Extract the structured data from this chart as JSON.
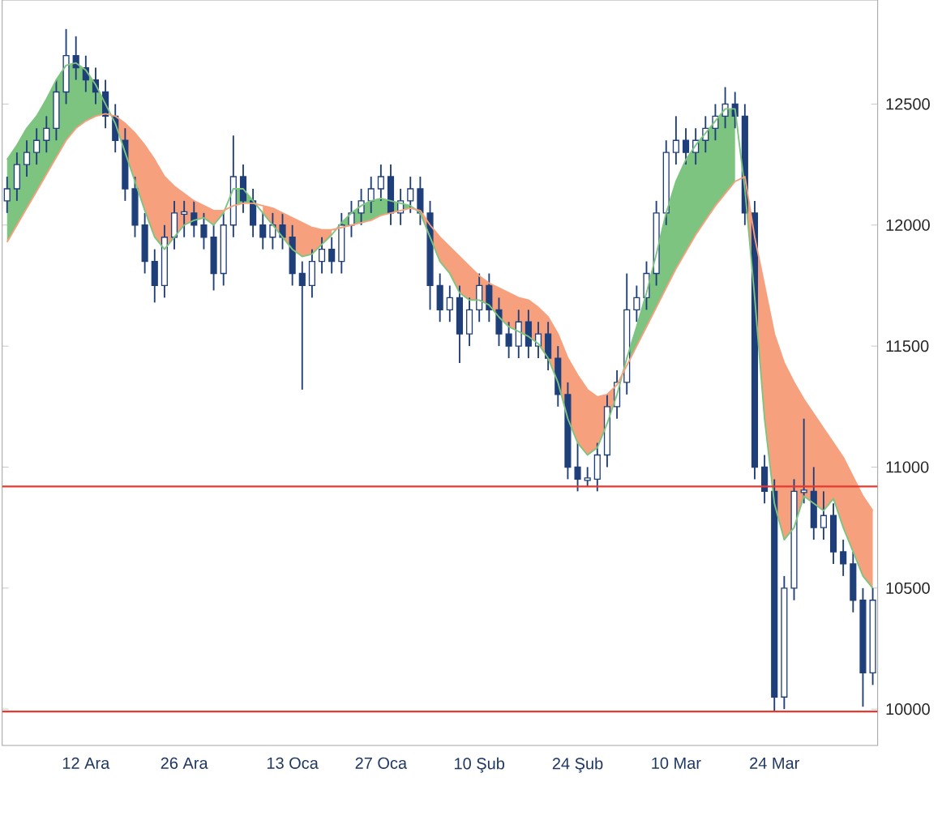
{
  "chart_data": {
    "type": "candlestick",
    "color": "#1f3f7a",
    "categories": [
      null,
      null,
      null,
      null,
      null,
      null,
      null,
      null,
      "12 Ara",
      null,
      null,
      null,
      null,
      null,
      null,
      null,
      null,
      null,
      "26 Ara",
      null,
      null,
      null,
      null,
      null,
      null,
      null,
      null,
      null,
      null,
      "13 Oca",
      null,
      null,
      null,
      null,
      null,
      null,
      null,
      null,
      "27 Oca",
      null,
      null,
      null,
      null,
      null,
      null,
      null,
      null,
      null,
      "10 Şub",
      null,
      null,
      null,
      null,
      null,
      null,
      null,
      null,
      null,
      "24 Şub",
      null,
      null,
      null,
      null,
      null,
      null,
      null,
      null,
      null,
      "10 Mar",
      null,
      null,
      null,
      null,
      null,
      null,
      null,
      null,
      null,
      "24 Mar",
      null,
      null,
      null,
      null,
      null,
      null,
      null,
      null,
      null,
      null
    ],
    "ohlc": [
      [
        12100,
        12200,
        12050,
        12150
      ],
      [
        12150,
        12300,
        12100,
        12250
      ],
      [
        12250,
        12350,
        12200,
        12300
      ],
      [
        12300,
        12400,
        12250,
        12350
      ],
      [
        12350,
        12450,
        12300,
        12400
      ],
      [
        12400,
        12600,
        12350,
        12550
      ],
      [
        12550,
        12810,
        12500,
        12700
      ],
      [
        12700,
        12780,
        12600,
        12650
      ],
      [
        12650,
        12700,
        12550,
        12600
      ],
      [
        12600,
        12650,
        12500,
        12550
      ],
      [
        12550,
        12600,
        12400,
        12450
      ],
      [
        12450,
        12500,
        12300,
        12350
      ],
      [
        12350,
        12400,
        12100,
        12150
      ],
      [
        12150,
        12200,
        11950,
        12000
      ],
      [
        12000,
        12050,
        11800,
        11850
      ],
      [
        11850,
        11900,
        11680,
        11750
      ],
      [
        11750,
        12000,
        11700,
        11950
      ],
      [
        11950,
        12100,
        11900,
        12050
      ],
      [
        12050,
        12100,
        11950,
        12050
      ],
      [
        12050,
        12100,
        11950,
        12000
      ],
      [
        12000,
        12050,
        11900,
        11950
      ],
      [
        11950,
        12000,
        11730,
        11800
      ],
      [
        11800,
        12050,
        11750,
        12000
      ],
      [
        12000,
        12370,
        11950,
        12200
      ],
      [
        12200,
        12250,
        12050,
        12100
      ],
      [
        12100,
        12150,
        11950,
        12000
      ],
      [
        12000,
        12050,
        11900,
        11950
      ],
      [
        11950,
        12050,
        11900,
        12000
      ],
      [
        12000,
        12050,
        11900,
        11950
      ],
      [
        11950,
        12000,
        11750,
        11800
      ],
      [
        11800,
        11850,
        11320,
        11750
      ],
      [
        11750,
        11900,
        11700,
        11850
      ],
      [
        11850,
        11950,
        11800,
        11900
      ],
      [
        11900,
        11950,
        11800,
        11850
      ],
      [
        11850,
        12050,
        11800,
        12000
      ],
      [
        12000,
        12100,
        11950,
        12050
      ],
      [
        12050,
        12150,
        12000,
        12100
      ],
      [
        12100,
        12200,
        12050,
        12150
      ],
      [
        12150,
        12250,
        12100,
        12200
      ],
      [
        12200,
        12250,
        12000,
        12050
      ],
      [
        12050,
        12150,
        12000,
        12100
      ],
      [
        12100,
        12200,
        12050,
        12150
      ],
      [
        12150,
        12200,
        12000,
        12050
      ],
      [
        12050,
        12100,
        11650,
        11750
      ],
      [
        11750,
        11800,
        11600,
        11650
      ],
      [
        11650,
        11750,
        11600,
        11700
      ],
      [
        11700,
        11750,
        11430,
        11550
      ],
      [
        11550,
        11700,
        11500,
        11650
      ],
      [
        11650,
        11800,
        11600,
        11750
      ],
      [
        11750,
        11800,
        11600,
        11650
      ],
      [
        11650,
        11700,
        11500,
        11550
      ],
      [
        11550,
        11600,
        11450,
        11500
      ],
      [
        11500,
        11650,
        11450,
        11600
      ],
      [
        11600,
        11650,
        11450,
        11500
      ],
      [
        11500,
        11600,
        11450,
        11550
      ],
      [
        11550,
        11600,
        11400,
        11450
      ],
      [
        11450,
        11500,
        11250,
        11300
      ],
      [
        11300,
        11350,
        10950,
        11000
      ],
      [
        11000,
        11100,
        10900,
        10950
      ],
      [
        10950,
        11000,
        10920,
        10950
      ],
      [
        10950,
        11100,
        10900,
        11050
      ],
      [
        11050,
        11300,
        11000,
        11250
      ],
      [
        11250,
        11400,
        11200,
        11350
      ],
      [
        11350,
        11800,
        11300,
        11650
      ],
      [
        11650,
        11750,
        11600,
        11700
      ],
      [
        11700,
        11850,
        11650,
        11800
      ],
      [
        11800,
        12100,
        11750,
        12050
      ],
      [
        12050,
        12350,
        12000,
        12300
      ],
      [
        12300,
        12450,
        12250,
        12350
      ],
      [
        12350,
        12400,
        12250,
        12300
      ],
      [
        12300,
        12400,
        12250,
        12350
      ],
      [
        12350,
        12450,
        12300,
        12400
      ],
      [
        12400,
        12500,
        12350,
        12450
      ],
      [
        12450,
        12570,
        12400,
        12500
      ],
      [
        12500,
        12550,
        12400,
        12450
      ],
      [
        12450,
        12500,
        12000,
        12050
      ],
      [
        12050,
        12100,
        10950,
        11000
      ],
      [
        11000,
        11050,
        10850,
        10900
      ],
      [
        10900,
        10950,
        9990,
        10050
      ],
      [
        10050,
        10550,
        10000,
        10500
      ],
      [
        10500,
        10950,
        10450,
        10900
      ],
      [
        10900,
        11200,
        10850,
        10900
      ],
      [
        10900,
        11000,
        10700,
        10750
      ],
      [
        10750,
        10900,
        10700,
        10800
      ],
      [
        10800,
        10850,
        10600,
        10650
      ],
      [
        10650,
        10700,
        10550,
        10600
      ],
      [
        10600,
        10650,
        10400,
        10450
      ],
      [
        10450,
        10500,
        10010,
        10150
      ],
      [
        10150,
        10500,
        10100,
        10450
      ]
    ],
    "series": [
      {
        "type": "line",
        "color": "#7cc47f",
        "values": [
          12270,
          12330,
          12400,
          12450,
          12520,
          12600,
          12660,
          12670,
          12640,
          12580,
          12500,
          12420,
          12300,
          12180,
          12060,
          11950,
          11900,
          11950,
          12000,
          12020,
          12030,
          12000,
          12050,
          12150,
          12150,
          12100,
          12050,
          12000,
          11950,
          11900,
          11870,
          11880,
          11920,
          11960,
          12010,
          12050,
          12080,
          12100,
          12110,
          12100,
          12090,
          12080,
          12050,
          11950,
          11850,
          11800,
          11720,
          11690,
          11690,
          11670,
          11620,
          11580,
          11560,
          11540,
          11510,
          11450,
          11350,
          11200,
          11100,
          11050,
          11080,
          11180,
          11300,
          11450,
          11580,
          11720,
          11880,
          12050,
          12180,
          12270,
          12330,
          12380,
          12430,
          12480,
          12480,
          12150,
          11700,
          11200,
          10850,
          10700,
          10750,
          10880,
          10850,
          10820,
          10870,
          10750,
          10650,
          10550,
          10500
        ],
        "lower": [
          11930,
          12000,
          12070,
          12140,
          12210,
          12280,
          12350,
          12400,
          12430,
          12450,
          12460,
          null,
          null,
          null,
          null,
          null,
          null,
          null,
          null,
          null,
          null,
          null,
          null,
          12080,
          12090,
          12090,
          null,
          null,
          null,
          null,
          null,
          null,
          null,
          null,
          11990,
          12000,
          12010,
          12020,
          12040,
          12050,
          12060,
          12070,
          null,
          null,
          null,
          null,
          null,
          null,
          null,
          null,
          null,
          null,
          null,
          null,
          null,
          null,
          null,
          null,
          null,
          null,
          null,
          null,
          null,
          11420,
          11500,
          11580,
          11660,
          11740,
          11820,
          11890,
          11960,
          12020,
          12080,
          12130,
          12180,
          null,
          null,
          null,
          null,
          null,
          null,
          null,
          null,
          null,
          null,
          null,
          null,
          null,
          null
        ],
        "upper": [
          12270,
          12330,
          12400,
          12450,
          12520,
          12600,
          12660,
          12670,
          12640,
          12580,
          12500,
          null,
          null,
          null,
          null,
          null,
          null,
          null,
          null,
          null,
          null,
          null,
          null,
          12150,
          12150,
          12100,
          null,
          null,
          null,
          null,
          null,
          null,
          null,
          null,
          12010,
          12050,
          12080,
          12100,
          12110,
          12100,
          12090,
          12080,
          null,
          null,
          null,
          null,
          null,
          null,
          null,
          null,
          null,
          null,
          null,
          null,
          null,
          null,
          null,
          null,
          null,
          null,
          null,
          null,
          null,
          11450,
          11580,
          11720,
          11880,
          12050,
          12180,
          12270,
          12330,
          12380,
          12430,
          12480,
          12480,
          null,
          null,
          null,
          null,
          null,
          null,
          null,
          null,
          null,
          null,
          null,
          null,
          null,
          null
        ]
      },
      {
        "type": "line",
        "color": "#f7a07e",
        "values": [
          11930,
          12000,
          12070,
          12140,
          12210,
          12280,
          12350,
          12400,
          12430,
          12450,
          12460,
          12450,
          12420,
          12380,
          12330,
          12270,
          12200,
          12160,
          12130,
          12100,
          12080,
          12060,
          12060,
          12080,
          12090,
          12090,
          12080,
          12070,
          12050,
          12030,
          12010,
          11990,
          11980,
          11980,
          11990,
          12000,
          12010,
          12020,
          12040,
          12050,
          12060,
          12070,
          12060,
          12000,
          11950,
          11910,
          11870,
          11830,
          11790,
          11760,
          11740,
          11720,
          11700,
          11690,
          11660,
          11620,
          11550,
          11450,
          11380,
          11320,
          11290,
          11300,
          11340,
          11420,
          11500,
          11580,
          11660,
          11740,
          11820,
          11890,
          11960,
          12020,
          12080,
          12130,
          12180,
          12200,
          11950,
          11750,
          11550,
          11430,
          11350,
          11280,
          11220,
          11160,
          11100,
          11040,
          10960,
          10880,
          10820
        ],
        "lower": [
          null,
          null,
          null,
          null,
          null,
          null,
          null,
          null,
          null,
          null,
          null,
          12420,
          12300,
          12180,
          12060,
          11950,
          11900,
          11950,
          12000,
          12020,
          12030,
          12000,
          12050,
          null,
          null,
          null,
          12050,
          12000,
          11950,
          11900,
          11870,
          11880,
          11920,
          11960,
          null,
          null,
          null,
          null,
          null,
          null,
          null,
          null,
          12050,
          11950,
          11850,
          11800,
          11720,
          11690,
          11690,
          11670,
          11620,
          11580,
          11560,
          11540,
          11510,
          11450,
          11350,
          11200,
          11100,
          11050,
          11080,
          11180,
          11300,
          null,
          null,
          null,
          null,
          null,
          null,
          null,
          null,
          null,
          null,
          null,
          null,
          12150,
          11700,
          11200,
          10850,
          10700,
          10750,
          10880,
          10850,
          10820,
          10870,
          10750,
          10650,
          10550,
          10500
        ],
        "upper": [
          null,
          null,
          null,
          null,
          null,
          null,
          null,
          null,
          null,
          null,
          null,
          12450,
          12420,
          12380,
          12330,
          12270,
          12200,
          12160,
          12130,
          12100,
          12080,
          12060,
          12060,
          null,
          null,
          null,
          12080,
          12070,
          12050,
          12030,
          12010,
          11990,
          11980,
          11980,
          null,
          null,
          null,
          null,
          null,
          null,
          null,
          null,
          12060,
          12000,
          11950,
          11910,
          11870,
          11830,
          11790,
          11760,
          11740,
          11720,
          11700,
          11690,
          11660,
          11620,
          11550,
          11450,
          11380,
          11320,
          11290,
          11300,
          11340,
          null,
          null,
          null,
          null,
          null,
          null,
          null,
          null,
          null,
          null,
          null,
          null,
          12200,
          11950,
          11750,
          11550,
          11430,
          11350,
          11280,
          11220,
          11160,
          11100,
          11040,
          10960,
          10880,
          10820
        ]
      }
    ],
    "ylim": [
      9850,
      12930
    ],
    "yticks": [
      10000,
      10500,
      11000,
      11500,
      12000,
      12500
    ],
    "ref_lines": [
      {
        "axis": "y",
        "value": 10920,
        "color": "#e8382f"
      },
      {
        "axis": "y",
        "value": 9990,
        "color": "#e8382f"
      }
    ]
  }
}
